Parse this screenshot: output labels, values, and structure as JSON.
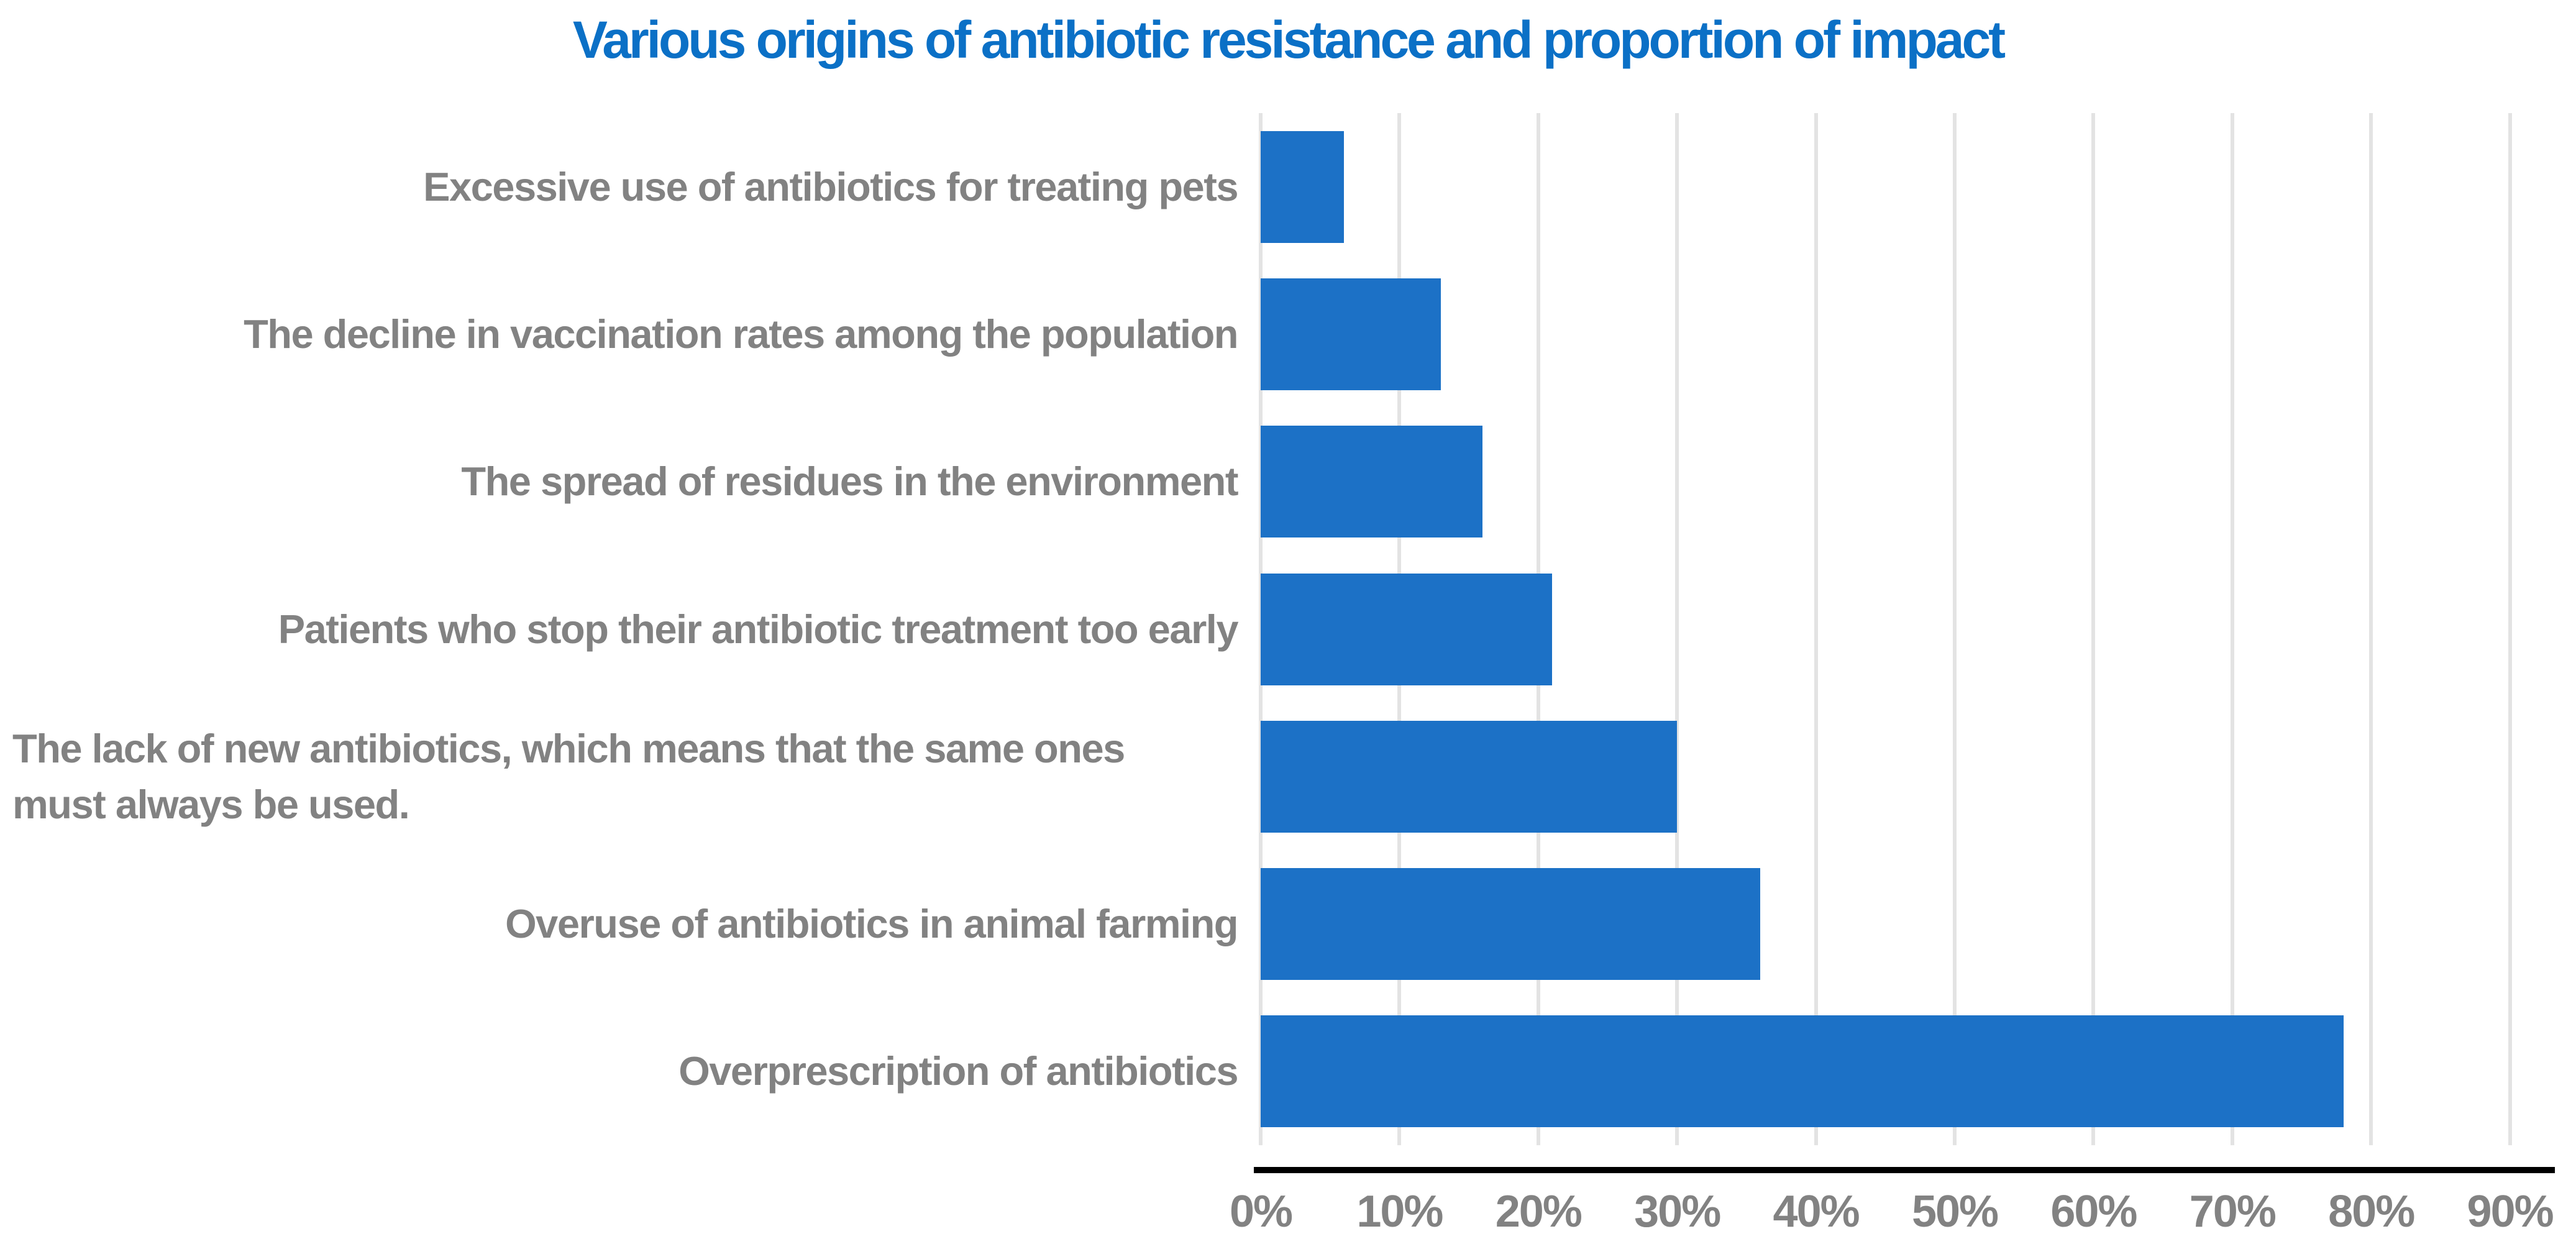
{
  "title": "Various origins of antibiotic resistance and proportion of impact",
  "colors": {
    "bar": "#1c71c6",
    "title_text": "#0b70c6",
    "category_label_text": "#828282",
    "tick_label_text": "#828282",
    "gridline": "#e3e3e3",
    "axis_line": "#000000",
    "background": "#ffffff"
  },
  "chart_data": {
    "type": "bar",
    "orientation": "horizontal",
    "title": "Various origins of antibiotic resistance and proportion of impact",
    "categories": [
      "Excessive use of antibiotics for treating pets",
      "The decline in vaccination rates among the population",
      "The spread of residues in the environment",
      "Patients who stop their antibiotic treatment too early",
      "The lack of new antibiotics, which means that the same ones\nmust always be used.",
      "Overuse of antibiotics in animal farming",
      "Overprescription of antibiotics"
    ],
    "values": [
      6,
      13,
      16,
      21,
      30,
      36,
      78
    ],
    "unit": "%",
    "xlabel": "",
    "ylabel": "",
    "x_axis": {
      "min": 0,
      "max": 90,
      "step": 10,
      "tick_labels": [
        "0%",
        "10%",
        "20%",
        "30%",
        "40%",
        "50%",
        "60%",
        "70%",
        "80%",
        "90%"
      ]
    },
    "grid": "vertical-gridlines",
    "legend": "none",
    "bar_color": "#1c71c6"
  }
}
